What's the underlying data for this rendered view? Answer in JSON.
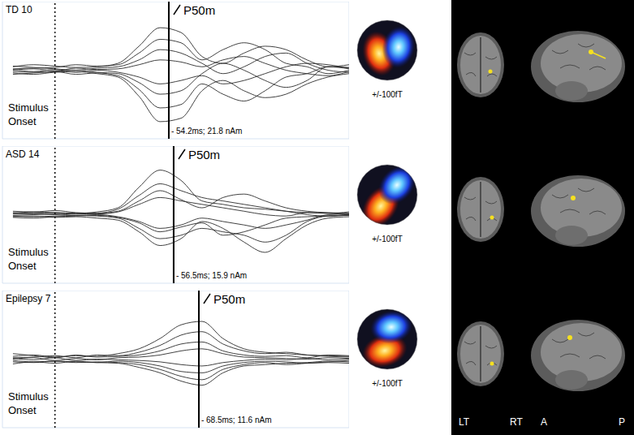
{
  "chart_data": [
    {
      "type": "line",
      "title": "TD 10",
      "grid": true,
      "tick_labels": false,
      "color": "#2b2b2b",
      "xlim": [
        -25,
        140
      ],
      "ylim": [
        -100,
        100
      ],
      "xticks": [
        -25,
        -20,
        -15,
        -10,
        -5,
        0,
        5,
        10,
        15,
        20,
        25,
        30,
        35,
        40,
        45,
        50,
        55,
        60,
        65,
        70,
        75,
        80,
        85,
        90,
        95,
        100,
        105,
        110,
        115,
        120,
        125,
        130,
        135,
        140
      ],
      "yticks": [
        -100,
        -87.5,
        -75,
        -62.5,
        -50,
        -37.5,
        -25,
        -12.5,
        0,
        12.5,
        25,
        37.5,
        50,
        62.5,
        75,
        87.5,
        100
      ],
      "x": [
        -20,
        -10,
        0,
        10,
        20,
        30,
        40,
        50,
        60,
        70,
        80,
        90,
        100,
        110,
        120,
        130,
        140
      ],
      "series": [
        {
          "values": [
            5,
            8,
            6,
            4,
            5,
            10,
            35,
            62,
            55,
            20,
            10,
            25,
            35,
            30,
            15,
            5,
            8
          ]
        },
        {
          "values": [
            -4,
            -6,
            -3,
            -2,
            -5,
            -10,
            -38,
            -75,
            -70,
            -30,
            -15,
            -30,
            -40,
            -35,
            -20,
            -10,
            -5
          ]
        },
        {
          "values": [
            2,
            3,
            4,
            8,
            6,
            8,
            25,
            45,
            40,
            15,
            30,
            40,
            30,
            10,
            5,
            -5,
            0
          ]
        },
        {
          "values": [
            -2,
            -3,
            -2,
            -6,
            -4,
            -8,
            -28,
            -55,
            -50,
            -20,
            -35,
            -45,
            -30,
            -10,
            -5,
            5,
            2
          ]
        },
        {
          "values": [
            6,
            4,
            2,
            0,
            3,
            5,
            15,
            30,
            25,
            10,
            -5,
            5,
            20,
            25,
            10,
            0,
            -3
          ]
        },
        {
          "values": [
            -6,
            -4,
            -2,
            0,
            -3,
            -5,
            -18,
            -35,
            -30,
            -5,
            10,
            0,
            -15,
            -25,
            -15,
            5,
            4
          ]
        },
        {
          "values": [
            0,
            2,
            -1,
            3,
            1,
            2,
            8,
            15,
            12,
            5,
            15,
            20,
            10,
            0,
            -5,
            -8,
            -2
          ]
        },
        {
          "values": [
            1,
            -2,
            1,
            -3,
            0,
            -3,
            -10,
            -20,
            -15,
            -8,
            -20,
            -15,
            -5,
            5,
            10,
            8,
            3
          ]
        }
      ],
      "onset": {
        "x": 0,
        "label": "Stimulus Onset",
        "line_style": "dotted"
      },
      "peak": {
        "x": 54.2,
        "label": "P50m",
        "annotation": "- 54.2ms; 21.8 nAm",
        "line_style": "solid"
      },
      "topomap_label": "+/-100fT"
    },
    {
      "type": "line",
      "title": "ASD 14",
      "grid": true,
      "tick_labels": false,
      "color": "#2b2b2b",
      "xlim": [
        -25,
        140
      ],
      "ylim": [
        -100,
        100
      ],
      "xticks": [
        -25,
        -20,
        -15,
        -10,
        -5,
        0,
        5,
        10,
        15,
        20,
        25,
        30,
        35,
        40,
        45,
        50,
        55,
        60,
        65,
        70,
        75,
        80,
        85,
        90,
        95,
        100,
        105,
        110,
        115,
        120,
        125,
        130,
        135,
        140
      ],
      "yticks": [
        -100,
        -87.5,
        -75,
        -62.5,
        -50,
        -37.5,
        -25,
        -12.5,
        0,
        12.5,
        25,
        37.5,
        50,
        62.5,
        75,
        87.5,
        100
      ],
      "x": [
        -20,
        -10,
        0,
        10,
        20,
        30,
        40,
        50,
        60,
        70,
        80,
        90,
        100,
        110,
        120,
        130,
        140
      ],
      "series": [
        {
          "values": [
            3,
            2,
            3,
            2,
            4,
            10,
            40,
            65,
            50,
            20,
            15,
            10,
            8,
            5,
            3,
            2,
            4
          ]
        },
        {
          "values": [
            -3,
            -2,
            -4,
            -3,
            -5,
            -8,
            -25,
            -45,
            -35,
            -10,
            -20,
            -40,
            -55,
            -35,
            -15,
            -5,
            -3
          ]
        },
        {
          "values": [
            2,
            4,
            3,
            1,
            2,
            8,
            28,
            45,
            35,
            25,
            20,
            15,
            10,
            5,
            0,
            -2,
            1
          ]
        },
        {
          "values": [
            -2,
            -3,
            -2,
            -1,
            -2,
            -5,
            -20,
            -35,
            -30,
            -20,
            -25,
            -30,
            -40,
            -30,
            -10,
            -2,
            -1
          ]
        },
        {
          "values": [
            1,
            1,
            0,
            2,
            1,
            4,
            15,
            25,
            20,
            15,
            10,
            5,
            0,
            -2,
            3,
            2,
            0
          ]
        },
        {
          "values": [
            -1,
            0,
            1,
            -1,
            0,
            -3,
            -10,
            -20,
            -15,
            -5,
            -10,
            -15,
            -20,
            -15,
            -8,
            0,
            1
          ]
        },
        {
          "values": [
            5,
            4,
            6,
            3,
            2,
            5,
            20,
            35,
            22,
            10,
            25,
            30,
            20,
            10,
            5,
            3,
            2
          ]
        },
        {
          "values": [
            -4,
            -5,
            -3,
            -2,
            -1,
            -4,
            -12,
            -25,
            -18,
            -12,
            -30,
            -25,
            -15,
            -5,
            -3,
            -2,
            -1
          ]
        }
      ],
      "onset": {
        "x": 0,
        "label": "Stimulus Onset",
        "line_style": "dotted"
      },
      "peak": {
        "x": 56.5,
        "label": "P50m",
        "annotation": "- 56.5ms; 15.9 nAm",
        "line_style": "solid"
      },
      "topomap_label": "+/-100fT"
    },
    {
      "type": "line",
      "title": "Epilepsy 7",
      "grid": true,
      "tick_labels": false,
      "color": "#2b2b2b",
      "xlim": [
        -25,
        140
      ],
      "ylim": [
        -100,
        100
      ],
      "xticks": [
        -25,
        -20,
        -15,
        -10,
        -5,
        0,
        5,
        10,
        15,
        20,
        25,
        30,
        35,
        40,
        45,
        50,
        55,
        60,
        65,
        70,
        75,
        80,
        85,
        90,
        95,
        100,
        105,
        110,
        115,
        120,
        125,
        130,
        135,
        140
      ],
      "yticks": [
        -100,
        -87.5,
        -75,
        -62.5,
        -50,
        -37.5,
        -25,
        -12.5,
        0,
        12.5,
        25,
        37.5,
        50,
        62.5,
        75,
        87.5,
        100
      ],
      "x": [
        -20,
        -10,
        0,
        10,
        20,
        30,
        40,
        50,
        60,
        70,
        80,
        90,
        100,
        110,
        120,
        130,
        140
      ],
      "series": [
        {
          "values": [
            4,
            6,
            3,
            5,
            4,
            8,
            15,
            30,
            50,
            55,
            30,
            15,
            10,
            8,
            6,
            5,
            4
          ]
        },
        {
          "values": [
            -4,
            -5,
            -3,
            -4,
            -5,
            -6,
            -12,
            -20,
            -32,
            -38,
            -20,
            -10,
            -8,
            -6,
            -5,
            -3,
            -4
          ]
        },
        {
          "values": [
            2,
            3,
            5,
            2,
            6,
            5,
            10,
            20,
            35,
            40,
            22,
            12,
            8,
            10,
            6,
            4,
            3
          ]
        },
        {
          "values": [
            -2,
            -4,
            -3,
            -5,
            -4,
            -5,
            -8,
            -15,
            -25,
            -30,
            -15,
            -8,
            -5,
            -8,
            -6,
            -4,
            -2
          ]
        },
        {
          "values": [
            8,
            5,
            2,
            6,
            3,
            4,
            6,
            12,
            22,
            25,
            12,
            6,
            4,
            5,
            2,
            6,
            5
          ]
        },
        {
          "values": [
            -7,
            -4,
            -6,
            -3,
            -5,
            -3,
            -5,
            -10,
            -18,
            -20,
            -10,
            -5,
            -3,
            -4,
            -6,
            -5,
            -6
          ]
        },
        {
          "values": [
            0,
            2,
            -2,
            1,
            -1,
            2,
            3,
            6,
            12,
            15,
            8,
            3,
            2,
            1,
            0,
            2,
            1
          ]
        },
        {
          "values": [
            1,
            -1,
            2,
            -2,
            0,
            -1,
            -2,
            -4,
            -8,
            -10,
            -5,
            -2,
            0,
            -1,
            1,
            -1,
            0
          ]
        }
      ],
      "onset": {
        "x": 0,
        "label": "Stimulus Onset",
        "line_style": "dotted"
      },
      "peak": {
        "x": 68.5,
        "label": "P50m",
        "annotation": "- 68.5ms; 11.6 nAm",
        "line_style": "solid"
      },
      "topomap_label": "+/-100fT"
    }
  ],
  "mri_labels": [
    "LT",
    "RT",
    "A",
    "P"
  ]
}
